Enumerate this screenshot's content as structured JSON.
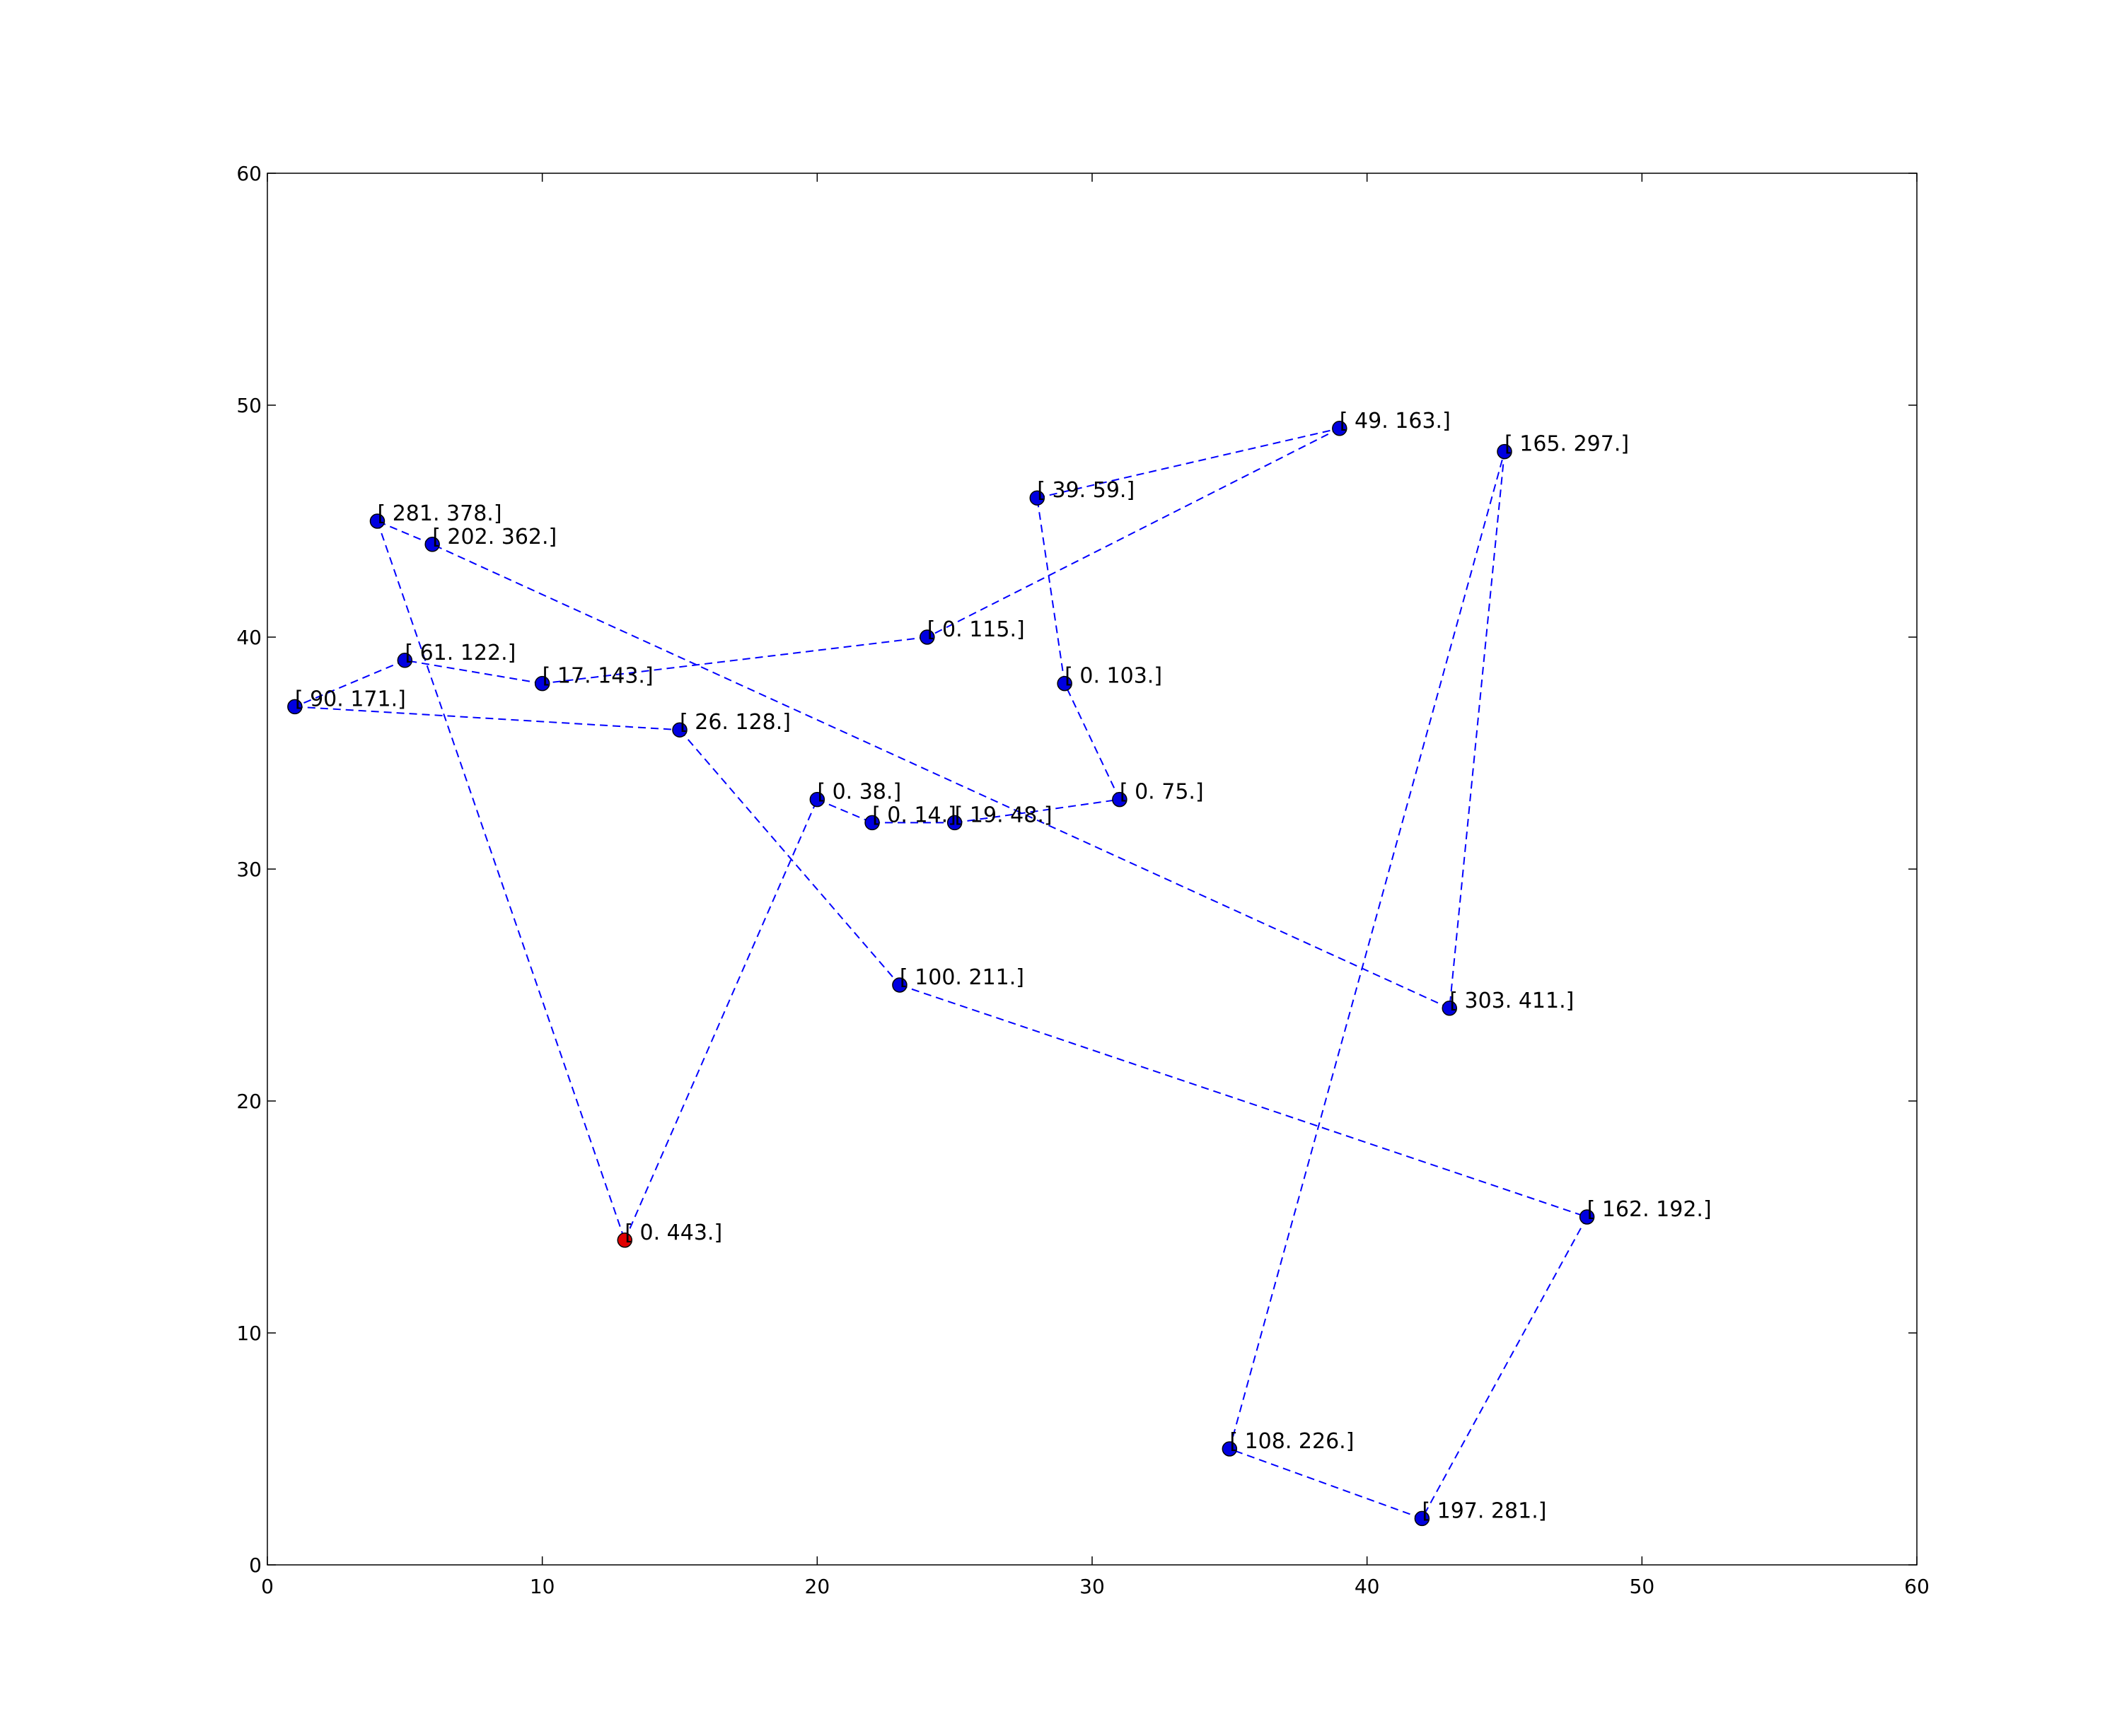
{
  "chart_data": {
    "type": "scatter",
    "title": "",
    "xlabel": "",
    "ylabel": "",
    "xlim": [
      0,
      60
    ],
    "ylim": [
      0,
      60
    ],
    "xticks": [
      "0",
      "10",
      "20",
      "30",
      "40",
      "50",
      "60"
    ],
    "yticks": [
      "0",
      "10",
      "20",
      "30",
      "40",
      "50",
      "60"
    ],
    "grid": false,
    "colors": {
      "point": "#0000e0",
      "start_point": "#e00000",
      "path": "#0000ff"
    },
    "points": [
      {
        "x": 13,
        "y": 14,
        "label": "[  0.  443.]",
        "start": true
      },
      {
        "x": 20,
        "y": 33,
        "label": "[  0.  38.]"
      },
      {
        "x": 22,
        "y": 32,
        "label": "[  0.  14.]"
      },
      {
        "x": 25,
        "y": 32,
        "label": "[ 19.  48.]"
      },
      {
        "x": 31,
        "y": 33,
        "label": "[  0.  75.]"
      },
      {
        "x": 29,
        "y": 38,
        "label": "[   0.  103.]"
      },
      {
        "x": 28,
        "y": 46,
        "label": "[ 39.  59.]"
      },
      {
        "x": 39,
        "y": 49,
        "label": "[  49.  163.]"
      },
      {
        "x": 24,
        "y": 40,
        "label": "[   0.  115.]"
      },
      {
        "x": 10,
        "y": 38,
        "label": "[  17.  143.]"
      },
      {
        "x": 5,
        "y": 39,
        "label": "[  61.  122.]"
      },
      {
        "x": 1,
        "y": 37,
        "label": "[  90.  171.]"
      },
      {
        "x": 15,
        "y": 36,
        "label": "[  26.  128.]"
      },
      {
        "x": 23,
        "y": 25,
        "label": "[ 100.  211.]"
      },
      {
        "x": 48,
        "y": 15,
        "label": "[ 162.  192.]"
      },
      {
        "x": 42,
        "y": 2,
        "label": "[ 197.  281.]"
      },
      {
        "x": 35,
        "y": 5,
        "label": "[ 108.  226.]"
      },
      {
        "x": 45,
        "y": 48,
        "label": "[ 165.  297.]"
      },
      {
        "x": 43,
        "y": 24,
        "label": "[ 303.  411.]"
      },
      {
        "x": 6,
        "y": 44,
        "label": "[ 202.  362.]"
      },
      {
        "x": 4,
        "y": 45,
        "label": "[ 281.  378.]"
      }
    ],
    "path_closed": true
  }
}
